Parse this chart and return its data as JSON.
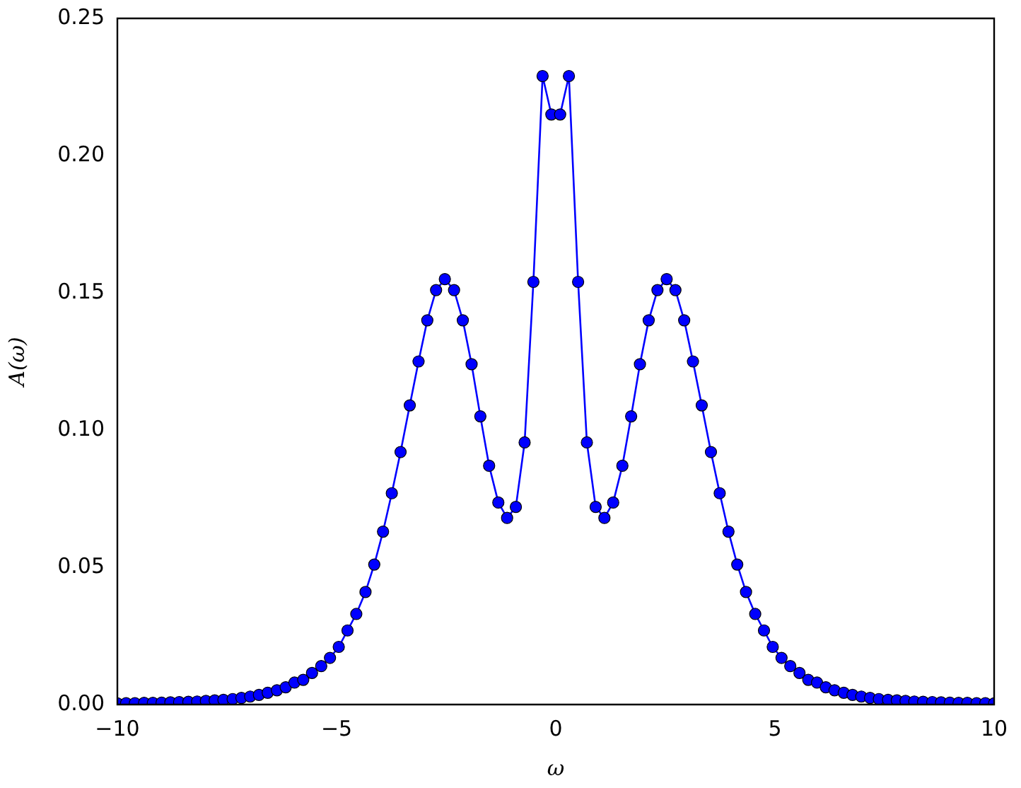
{
  "chart_data": {
    "type": "line",
    "xlabel": "ω",
    "ylabel": "A(ω)",
    "x": [
      -10,
      -9.8,
      -9.6,
      -9.39,
      -9.19,
      -8.99,
      -8.79,
      -8.59,
      -8.38,
      -8.18,
      -7.98,
      -7.78,
      -7.58,
      -7.37,
      -7.17,
      -6.97,
      -6.77,
      -6.57,
      -6.36,
      -6.16,
      -5.96,
      -5.76,
      -5.56,
      -5.35,
      -5.15,
      -4.95,
      -4.75,
      -4.55,
      -4.34,
      -4.14,
      -3.94,
      -3.74,
      -3.54,
      -3.33,
      -3.13,
      -2.93,
      -2.73,
      -2.53,
      -2.32,
      -2.12,
      -1.92,
      -1.72,
      -1.52,
      -1.31,
      -1.11,
      -0.91,
      -0.71,
      -0.51,
      -0.3,
      -0.1,
      0.1,
      0.3,
      0.51,
      0.71,
      0.91,
      1.11,
      1.31,
      1.52,
      1.72,
      1.92,
      2.12,
      2.32,
      2.53,
      2.73,
      2.93,
      3.13,
      3.33,
      3.54,
      3.74,
      3.94,
      4.14,
      4.34,
      4.55,
      4.75,
      4.95,
      5.15,
      5.35,
      5.56,
      5.76,
      5.96,
      6.16,
      6.36,
      6.57,
      6.77,
      6.97,
      7.17,
      7.37,
      7.58,
      7.78,
      7.98,
      8.18,
      8.38,
      8.59,
      8.79,
      8.99,
      9.19,
      9.39,
      9.6,
      9.8,
      10
    ],
    "series": [
      {
        "color": "#0000ff",
        "values": [
          0.0004,
          0.0005,
          0.0005,
          0.0006,
          0.0006,
          0.0007,
          0.0008,
          0.0009,
          0.001,
          0.0011,
          0.0013,
          0.0015,
          0.0017,
          0.002,
          0.0024,
          0.0029,
          0.0035,
          0.0043,
          0.0052,
          0.0063,
          0.008,
          0.009,
          0.0115,
          0.014,
          0.017,
          0.021,
          0.027,
          0.033,
          0.041,
          0.051,
          0.063,
          0.077,
          0.092,
          0.109,
          0.125,
          0.14,
          0.151,
          0.155,
          0.151,
          0.14,
          0.124,
          0.105,
          0.087,
          0.0736,
          0.068,
          0.072,
          0.0955,
          0.154,
          0.229,
          0.215,
          0.215,
          0.229,
          0.154,
          0.0955,
          0.072,
          0.068,
          0.0736,
          0.087,
          0.105,
          0.124,
          0.14,
          0.151,
          0.155,
          0.151,
          0.14,
          0.125,
          0.109,
          0.092,
          0.077,
          0.063,
          0.051,
          0.041,
          0.033,
          0.027,
          0.021,
          0.017,
          0.014,
          0.0115,
          0.009,
          0.008,
          0.0063,
          0.0052,
          0.0043,
          0.0035,
          0.0029,
          0.0024,
          0.002,
          0.0017,
          0.0015,
          0.0013,
          0.0011,
          0.001,
          0.0009,
          0.0008,
          0.0007,
          0.0006,
          0.0006,
          0.0005,
          0.0005,
          0.0004
        ]
      }
    ],
    "xlim": [
      -10,
      10
    ],
    "ylim": [
      0,
      0.25
    ],
    "xticks": [
      {
        "value": -10,
        "label": "−10"
      },
      {
        "value": -5,
        "label": "−5"
      },
      0,
      5,
      10
    ],
    "yticks": [
      {
        "value": 0,
        "label": "0.00"
      },
      {
        "value": 0.05,
        "label": "0.05"
      },
      {
        "value": 0.1,
        "label": "0.10"
      },
      {
        "value": 0.15,
        "label": "0.15"
      },
      {
        "value": 0.2,
        "label": "0.20"
      },
      {
        "value": 0.25,
        "label": "0.25"
      }
    ],
    "grid": false,
    "legend": false,
    "marker": "circle",
    "line_style": "solid"
  }
}
